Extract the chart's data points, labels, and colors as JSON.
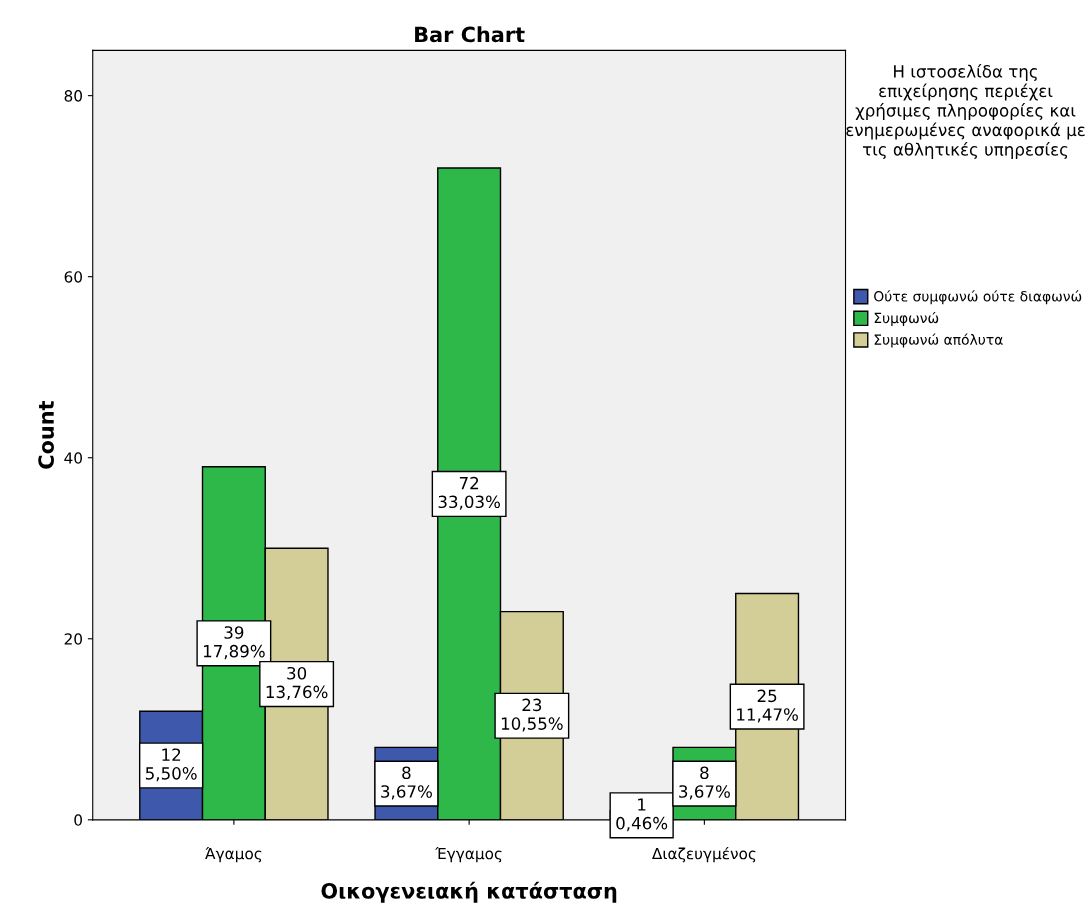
{
  "chart_data": {
    "type": "bar",
    "title": "Bar Chart",
    "xlabel": "Οικογενειακή κατάσταση",
    "ylabel": "Count",
    "legend_title": "Η ιστοσελίδα της επιχείρησης περιέχει χρήσιμες πληροφορίες και ενημερωμένες αναφορικά με τις αθλητικές υπηρεσίες",
    "categories": [
      "Άγαμος",
      "Έγγαμος",
      "Διαζευγμένος"
    ],
    "series": [
      {
        "name": "Ούτε συμφωνώ ούτε διαφωνώ",
        "color": "#3e58ac",
        "values": [
          12,
          8,
          1
        ],
        "value_labels": [
          "12\n5,50%",
          "8\n3,67%",
          "1\n0,46%"
        ]
      },
      {
        "name": "Συμφωνώ",
        "color": "#2fb84a",
        "values": [
          39,
          72,
          8
        ],
        "value_labels": [
          "39\n17,89%",
          "72\n33,03%",
          "8\n3,67%"
        ]
      },
      {
        "name": "Συμφωνώ απόλυτα",
        "color": "#d3ce97",
        "values": [
          30,
          23,
          25
        ],
        "value_labels": [
          "30\n13,76%",
          "23\n10,55%",
          "25\n11,47%"
        ]
      }
    ],
    "ylim": [
      0,
      85
    ],
    "yticks": [
      0,
      20,
      40,
      60,
      80
    ],
    "grid": false,
    "legend": "right"
  }
}
